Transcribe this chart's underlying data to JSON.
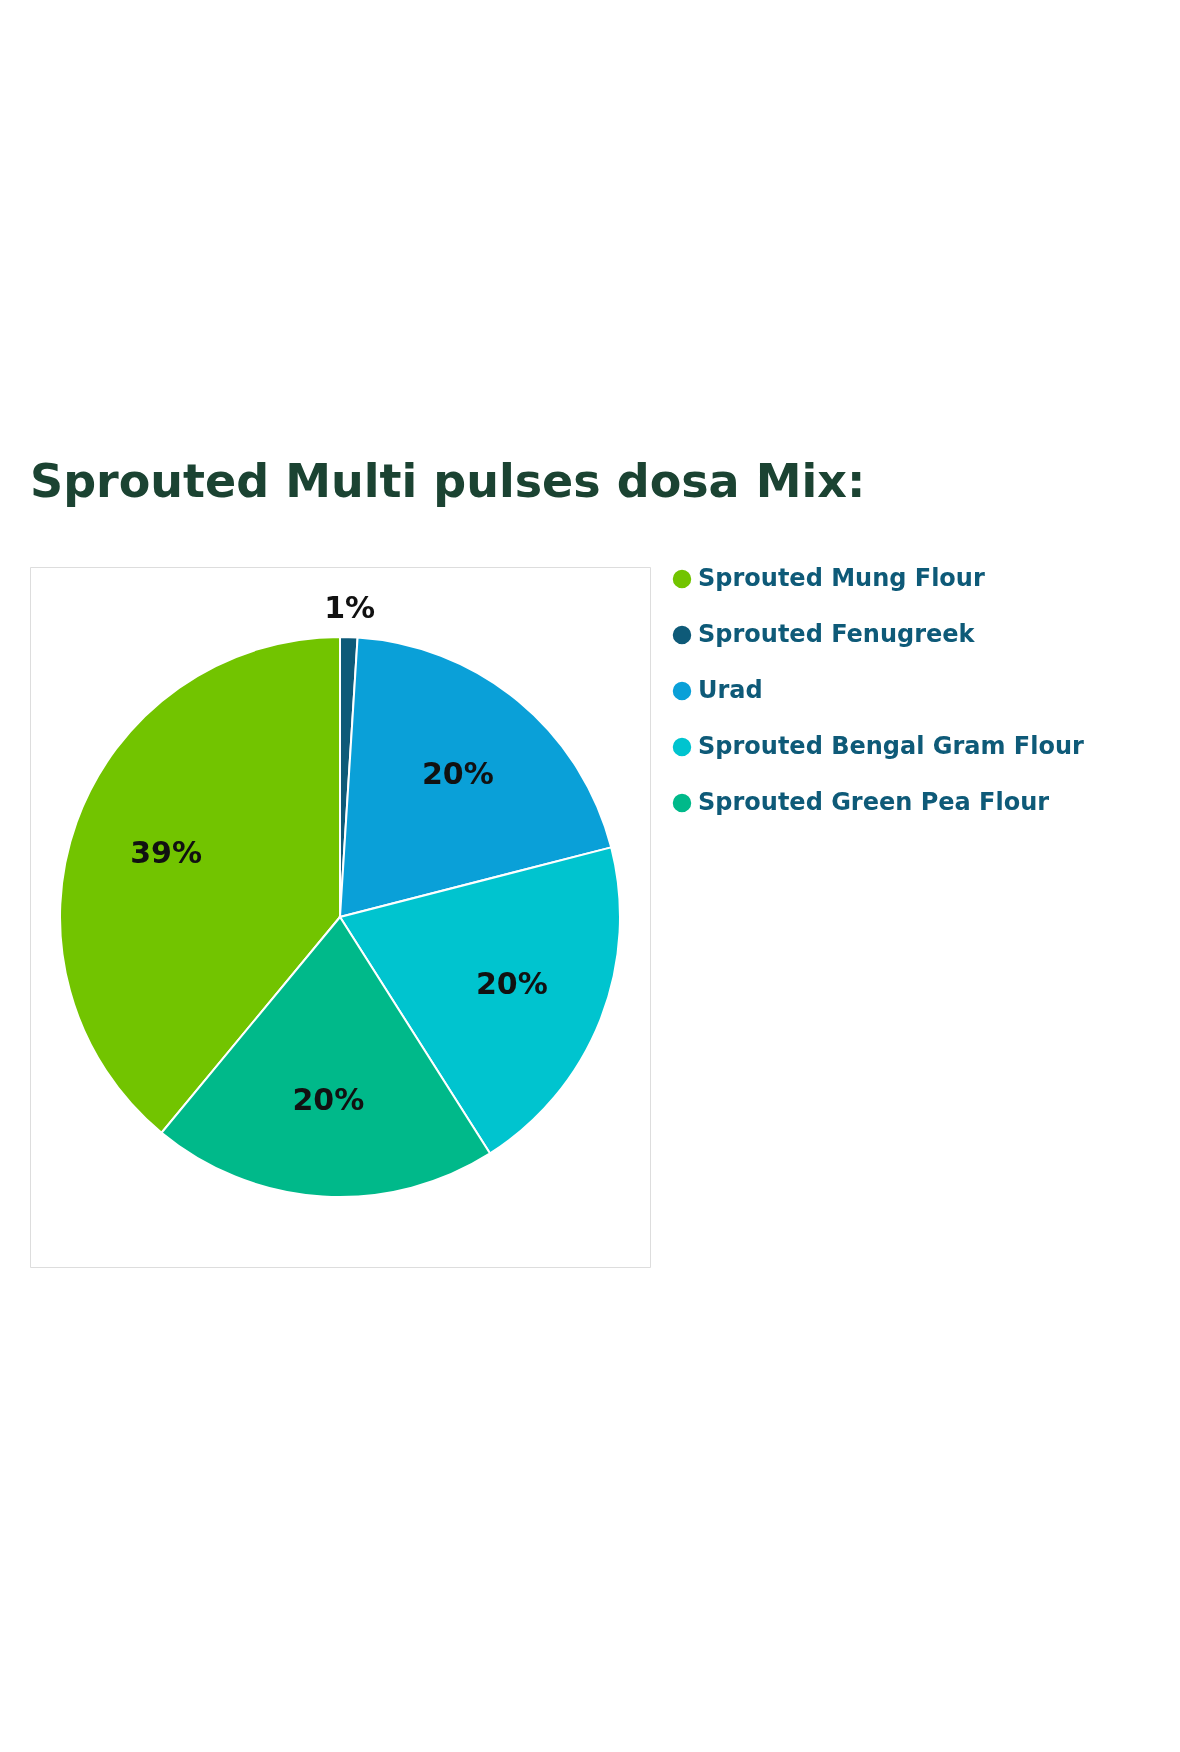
{
  "chart_data": {
    "type": "pie",
    "title": "Sprouted Multi pulses dosa Mix:",
    "categories": [
      "Sprouted Mung Flour",
      "Sprouted Fenugreek",
      "Urad",
      "Sprouted Bengal Gram Flour",
      "Sprouted Green Pea Flour"
    ],
    "values": [
      39,
      1,
      20,
      20,
      20
    ],
    "colors": [
      "#72c400",
      "#0e5a78",
      "#0aa0d8",
      "#00c4cf",
      "#00b98a"
    ],
    "value_labels": [
      "39%",
      "1%",
      "20%",
      "20%",
      "20%"
    ],
    "legend": "right"
  }
}
